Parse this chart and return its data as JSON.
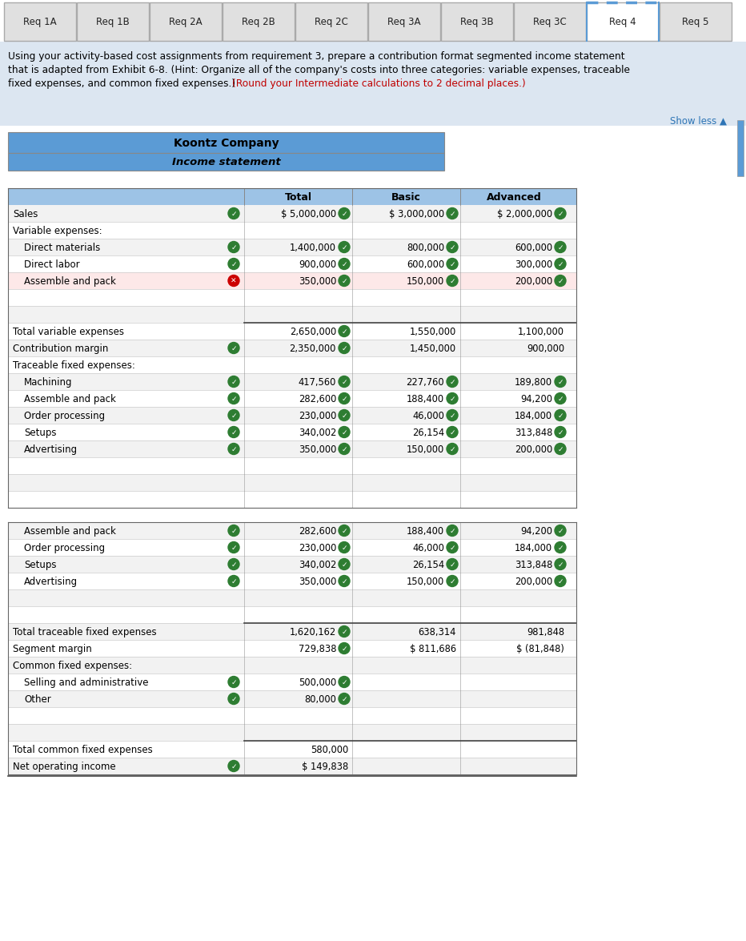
{
  "tabs": [
    "Req 1A",
    "Req 1B",
    "Req 2A",
    "Req 2B",
    "Req 2C",
    "Req 3A",
    "Req 3B",
    "Req 3C",
    "Req 4",
    "Req 5"
  ],
  "active_tab": "Req 4",
  "show_less": "Show less ▲",
  "company_title": "Koontz Company",
  "statement_title": "Income statement",
  "header_bg": "#5b9bd5",
  "tab_bg": "#e0e0e0",
  "active_tab_bg": "#ffffff",
  "instruction_bg": "#dce6f1",
  "table_header_bg": "#9dc3e6",
  "row_alt_bg": "#f2f2f2",
  "row_bg": "#ffffff",
  "columns": [
    "",
    "Total",
    "Basic",
    "Advanced"
  ],
  "rows": [
    {
      "label": "Sales",
      "indent": 0,
      "values": [
        "$ 5,000,000",
        "$ 3,000,000",
        "$ 2,000,000"
      ],
      "check": [
        true,
        true,
        true
      ],
      "row_check": true,
      "section_header": false,
      "empty": false,
      "error": false
    },
    {
      "label": "Variable expenses:",
      "indent": 0,
      "values": [
        "",
        "",
        ""
      ],
      "check": [
        false,
        false,
        false
      ],
      "row_check": false,
      "section_header": true,
      "empty": false,
      "error": false
    },
    {
      "label": "Direct materials",
      "indent": 1,
      "values": [
        "1,400,000",
        "800,000",
        "600,000"
      ],
      "check": [
        true,
        true,
        true
      ],
      "row_check": true,
      "section_header": false,
      "empty": false,
      "error": false
    },
    {
      "label": "Direct labor",
      "indent": 1,
      "values": [
        "900,000",
        "600,000",
        "300,000"
      ],
      "check": [
        true,
        true,
        true
      ],
      "row_check": true,
      "section_header": false,
      "empty": false,
      "error": false
    },
    {
      "label": "Assemble and pack",
      "indent": 1,
      "values": [
        "350,000",
        "150,000",
        "200,000"
      ],
      "check": [
        true,
        true,
        true
      ],
      "row_check": true,
      "section_header": false,
      "empty": false,
      "error": true,
      "highlight": true
    },
    {
      "label": "",
      "indent": 0,
      "values": [
        "",
        "",
        ""
      ],
      "check": [
        false,
        false,
        false
      ],
      "row_check": false,
      "section_header": false,
      "empty": true,
      "error": false
    },
    {
      "label": "",
      "indent": 0,
      "values": [
        "",
        "",
        ""
      ],
      "check": [
        false,
        false,
        false
      ],
      "row_check": false,
      "section_header": false,
      "empty": true,
      "error": false
    },
    {
      "label": "Total variable expenses",
      "indent": 0,
      "values": [
        "2,650,000",
        "1,550,000",
        "1,100,000"
      ],
      "check": [
        true,
        false,
        false
      ],
      "row_check": false,
      "section_header": false,
      "empty": false,
      "error": false,
      "top_border": true
    },
    {
      "label": "Contribution margin",
      "indent": 0,
      "values": [
        "2,350,000",
        "1,450,000",
        "900,000"
      ],
      "check": [
        true,
        false,
        false
      ],
      "row_check": true,
      "section_header": false,
      "empty": false,
      "error": false
    },
    {
      "label": "Traceable fixed expenses:",
      "indent": 0,
      "values": [
        "",
        "",
        ""
      ],
      "check": [
        false,
        false,
        false
      ],
      "row_check": false,
      "section_header": true,
      "empty": false,
      "error": false
    },
    {
      "label": "Machining",
      "indent": 1,
      "values": [
        "417,560",
        "227,760",
        "189,800"
      ],
      "check": [
        true,
        true,
        true
      ],
      "row_check": true,
      "section_header": false,
      "empty": false,
      "error": false
    },
    {
      "label": "Assemble and pack",
      "indent": 1,
      "values": [
        "282,600",
        "188,400",
        "94,200"
      ],
      "check": [
        true,
        true,
        true
      ],
      "row_check": true,
      "section_header": false,
      "empty": false,
      "error": false
    },
    {
      "label": "Order processing",
      "indent": 1,
      "values": [
        "230,000",
        "46,000",
        "184,000"
      ],
      "check": [
        true,
        true,
        true
      ],
      "row_check": true,
      "section_header": false,
      "empty": false,
      "error": false
    },
    {
      "label": "Setups",
      "indent": 1,
      "values": [
        "340,002",
        "26,154",
        "313,848"
      ],
      "check": [
        true,
        true,
        true
      ],
      "row_check": true,
      "section_header": false,
      "empty": false,
      "error": false
    },
    {
      "label": "Advertising",
      "indent": 1,
      "values": [
        "350,000",
        "150,000",
        "200,000"
      ],
      "check": [
        true,
        true,
        true
      ],
      "row_check": true,
      "section_header": false,
      "empty": false,
      "error": false
    },
    {
      "label": "",
      "indent": 0,
      "values": [
        "",
        "",
        ""
      ],
      "check": [
        false,
        false,
        false
      ],
      "row_check": false,
      "section_header": false,
      "empty": true,
      "error": false
    },
    {
      "label": "",
      "indent": 0,
      "values": [
        "",
        "",
        ""
      ],
      "check": [
        false,
        false,
        false
      ],
      "row_check": false,
      "section_header": false,
      "empty": true,
      "error": false
    },
    {
      "label": "",
      "indent": 0,
      "values": [
        "",
        "",
        ""
      ],
      "check": [
        false,
        false,
        false
      ],
      "row_check": false,
      "section_header": false,
      "empty": true,
      "error": false
    }
  ],
  "rows2": [
    {
      "label": "Assemble and pack",
      "indent": 1,
      "values": [
        "282,600",
        "188,400",
        "94,200"
      ],
      "check": [
        true,
        true,
        true
      ],
      "row_check": true,
      "section_header": false,
      "empty": false,
      "error": false
    },
    {
      "label": "Order processing",
      "indent": 1,
      "values": [
        "230,000",
        "46,000",
        "184,000"
      ],
      "check": [
        true,
        true,
        true
      ],
      "row_check": true,
      "section_header": false,
      "empty": false,
      "error": false
    },
    {
      "label": "Setups",
      "indent": 1,
      "values": [
        "340,002",
        "26,154",
        "313,848"
      ],
      "check": [
        true,
        true,
        true
      ],
      "row_check": true,
      "section_header": false,
      "empty": false,
      "error": false
    },
    {
      "label": "Advertising",
      "indent": 1,
      "values": [
        "350,000",
        "150,000",
        "200,000"
      ],
      "check": [
        true,
        true,
        true
      ],
      "row_check": true,
      "section_header": false,
      "empty": false,
      "error": false
    },
    {
      "label": "",
      "indent": 0,
      "values": [
        "",
        "",
        ""
      ],
      "check": [
        false,
        false,
        false
      ],
      "row_check": false,
      "section_header": false,
      "empty": true,
      "error": false
    },
    {
      "label": "",
      "indent": 0,
      "values": [
        "",
        "",
        ""
      ],
      "check": [
        false,
        false,
        false
      ],
      "row_check": false,
      "section_header": false,
      "empty": true,
      "error": false
    },
    {
      "label": "Total traceable fixed expenses",
      "indent": 0,
      "values": [
        "1,620,162",
        "638,314",
        "981,848"
      ],
      "check": [
        true,
        false,
        false
      ],
      "row_check": false,
      "section_header": false,
      "empty": false,
      "error": false,
      "top_border": true
    },
    {
      "label": "Segment margin",
      "indent": 0,
      "values": [
        "729,838",
        "$ 811,686",
        "$ (81,848)"
      ],
      "check": [
        true,
        false,
        false
      ],
      "row_check": false,
      "section_header": false,
      "empty": false,
      "error": false
    },
    {
      "label": "Common fixed expenses:",
      "indent": 0,
      "values": [
        "",
        "",
        ""
      ],
      "check": [
        false,
        false,
        false
      ],
      "row_check": false,
      "section_header": true,
      "empty": false,
      "error": false
    },
    {
      "label": "Selling and administrative",
      "indent": 1,
      "values": [
        "500,000",
        "",
        ""
      ],
      "check": [
        true,
        false,
        false
      ],
      "row_check": true,
      "section_header": false,
      "empty": false,
      "error": false
    },
    {
      "label": "Other",
      "indent": 1,
      "values": [
        "80,000",
        "",
        ""
      ],
      "check": [
        true,
        false,
        false
      ],
      "row_check": true,
      "section_header": false,
      "empty": false,
      "error": false
    },
    {
      "label": "",
      "indent": 0,
      "values": [
        "",
        "",
        ""
      ],
      "check": [
        false,
        false,
        false
      ],
      "row_check": false,
      "section_header": false,
      "empty": true,
      "error": false
    },
    {
      "label": "",
      "indent": 0,
      "values": [
        "",
        "",
        ""
      ],
      "check": [
        false,
        false,
        false
      ],
      "row_check": false,
      "section_header": false,
      "empty": true,
      "error": false
    },
    {
      "label": "Total common fixed expenses",
      "indent": 0,
      "values": [
        "580,000",
        "",
        ""
      ],
      "check": [
        false,
        false,
        false
      ],
      "row_check": false,
      "section_header": false,
      "empty": false,
      "error": false,
      "top_border": true
    },
    {
      "label": "Net operating income",
      "indent": 0,
      "values": [
        "$ 149,838",
        "",
        ""
      ],
      "check": [
        false,
        false,
        false
      ],
      "row_check": true,
      "section_header": false,
      "empty": false,
      "error": false
    }
  ]
}
